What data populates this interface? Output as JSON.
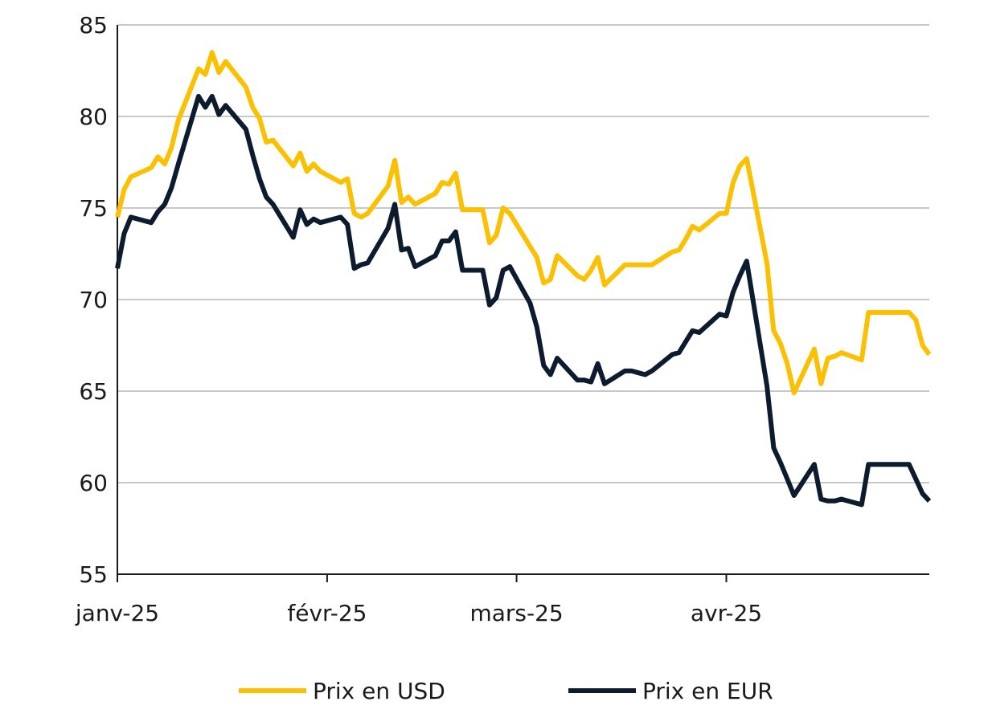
{
  "chart_data": {
    "type": "line",
    "title": "",
    "xlabel": "",
    "ylabel": "",
    "ylim": [
      55,
      85
    ],
    "y_ticks": [
      55,
      60,
      65,
      70,
      75,
      80,
      85
    ],
    "x_range": [
      "2025-01-01",
      "2025-04-30"
    ],
    "x_ticks": [
      {
        "date": "2025-01-01",
        "label": "janv-25"
      },
      {
        "date": "2025-02-01",
        "label": "févr-25"
      },
      {
        "date": "2025-03-01",
        "label": "mars-25"
      },
      {
        "date": "2025-04-01",
        "label": "avr-25"
      }
    ],
    "grid": "horizontal",
    "legend_position": "bottom",
    "series": [
      {
        "name": "Prix en USD",
        "color": "#FBC002",
        "points": [
          [
            "2025-01-01",
            74.5
          ],
          [
            "2025-01-02",
            76.0
          ],
          [
            "2025-01-03",
            76.7
          ],
          [
            "2025-01-06",
            77.2
          ],
          [
            "2025-01-07",
            77.8
          ],
          [
            "2025-01-08",
            77.4
          ],
          [
            "2025-01-09",
            78.3
          ],
          [
            "2025-01-10",
            79.8
          ],
          [
            "2025-01-13",
            82.6
          ],
          [
            "2025-01-14",
            82.3
          ],
          [
            "2025-01-15",
            83.5
          ],
          [
            "2025-01-16",
            82.4
          ],
          [
            "2025-01-17",
            83.0
          ],
          [
            "2025-01-20",
            81.6
          ],
          [
            "2025-01-21",
            80.5
          ],
          [
            "2025-01-22",
            79.9
          ],
          [
            "2025-01-23",
            78.6
          ],
          [
            "2025-01-24",
            78.7
          ],
          [
            "2025-01-27",
            77.3
          ],
          [
            "2025-01-28",
            78.0
          ],
          [
            "2025-01-29",
            77.0
          ],
          [
            "2025-01-30",
            77.4
          ],
          [
            "2025-01-31",
            77.0
          ],
          [
            "2025-02-03",
            76.4
          ],
          [
            "2025-02-04",
            76.6
          ],
          [
            "2025-02-05",
            74.7
          ],
          [
            "2025-02-06",
            74.5
          ],
          [
            "2025-02-07",
            74.7
          ],
          [
            "2025-02-10",
            76.2
          ],
          [
            "2025-02-11",
            77.6
          ],
          [
            "2025-02-12",
            75.3
          ],
          [
            "2025-02-13",
            75.6
          ],
          [
            "2025-02-14",
            75.2
          ],
          [
            "2025-02-17",
            75.8
          ],
          [
            "2025-02-18",
            76.4
          ],
          [
            "2025-02-19",
            76.3
          ],
          [
            "2025-02-20",
            76.9
          ],
          [
            "2025-02-21",
            74.9
          ],
          [
            "2025-02-24",
            74.9
          ],
          [
            "2025-02-25",
            73.1
          ],
          [
            "2025-02-26",
            73.5
          ],
          [
            "2025-02-27",
            75.0
          ],
          [
            "2025-02-28",
            74.7
          ],
          [
            "2025-03-03",
            72.9
          ],
          [
            "2025-03-04",
            72.3
          ],
          [
            "2025-03-05",
            70.9
          ],
          [
            "2025-03-06",
            71.1
          ],
          [
            "2025-03-07",
            72.4
          ],
          [
            "2025-03-10",
            71.3
          ],
          [
            "2025-03-11",
            71.1
          ],
          [
            "2025-03-12",
            71.6
          ],
          [
            "2025-03-13",
            72.3
          ],
          [
            "2025-03-14",
            70.8
          ],
          [
            "2025-03-17",
            71.9
          ],
          [
            "2025-03-18",
            71.9
          ],
          [
            "2025-03-19",
            71.9
          ],
          [
            "2025-03-20",
            71.9
          ],
          [
            "2025-03-21",
            71.9
          ],
          [
            "2025-03-24",
            72.6
          ],
          [
            "2025-03-25",
            72.7
          ],
          [
            "2025-03-26",
            73.3
          ],
          [
            "2025-03-27",
            74.0
          ],
          [
            "2025-03-28",
            73.8
          ],
          [
            "2025-03-31",
            74.7
          ],
          [
            "2025-04-01",
            74.7
          ],
          [
            "2025-04-02",
            76.4
          ],
          [
            "2025-04-03",
            77.3
          ],
          [
            "2025-04-04",
            77.7
          ],
          [
            "2025-04-07",
            72.0
          ],
          [
            "2025-04-08",
            68.3
          ],
          [
            "2025-04-09",
            67.6
          ],
          [
            "2025-04-10",
            66.5
          ],
          [
            "2025-04-11",
            64.9
          ],
          [
            "2025-04-14",
            67.3
          ],
          [
            "2025-04-15",
            65.4
          ],
          [
            "2025-04-16",
            66.8
          ],
          [
            "2025-04-17",
            66.9
          ],
          [
            "2025-04-18",
            67.1
          ],
          [
            "2025-04-21",
            66.7
          ],
          [
            "2025-04-22",
            69.3
          ],
          [
            "2025-04-23",
            69.3
          ],
          [
            "2025-04-24",
            69.3
          ],
          [
            "2025-04-25",
            69.3
          ],
          [
            "2025-04-28",
            69.3
          ],
          [
            "2025-04-29",
            68.9
          ],
          [
            "2025-04-30",
            67.5
          ],
          [
            "2025-05-01",
            67.0
          ]
        ]
      },
      {
        "name": "Prix en EUR",
        "color": "#0D1B2E",
        "points": [
          [
            "2025-01-01",
            71.7
          ],
          [
            "2025-01-02",
            73.6
          ],
          [
            "2025-01-03",
            74.5
          ],
          [
            "2025-01-06",
            74.2
          ],
          [
            "2025-01-07",
            74.8
          ],
          [
            "2025-01-08",
            75.2
          ],
          [
            "2025-01-09",
            76.1
          ],
          [
            "2025-01-10",
            77.4
          ],
          [
            "2025-01-13",
            81.1
          ],
          [
            "2025-01-14",
            80.5
          ],
          [
            "2025-01-15",
            81.1
          ],
          [
            "2025-01-16",
            80.1
          ],
          [
            "2025-01-17",
            80.6
          ],
          [
            "2025-01-20",
            79.3
          ],
          [
            "2025-01-21",
            77.9
          ],
          [
            "2025-01-22",
            76.6
          ],
          [
            "2025-01-23",
            75.6
          ],
          [
            "2025-01-24",
            75.2
          ],
          [
            "2025-01-27",
            73.4
          ],
          [
            "2025-01-28",
            74.9
          ],
          [
            "2025-01-29",
            74.1
          ],
          [
            "2025-01-30",
            74.4
          ],
          [
            "2025-01-31",
            74.2
          ],
          [
            "2025-02-03",
            74.5
          ],
          [
            "2025-02-04",
            74.1
          ],
          [
            "2025-02-05",
            71.7
          ],
          [
            "2025-02-06",
            71.9
          ],
          [
            "2025-02-07",
            72.0
          ],
          [
            "2025-02-10",
            73.9
          ],
          [
            "2025-02-11",
            75.2
          ],
          [
            "2025-02-12",
            72.7
          ],
          [
            "2025-02-13",
            72.8
          ],
          [
            "2025-02-14",
            71.8
          ],
          [
            "2025-02-17",
            72.4
          ],
          [
            "2025-02-18",
            73.2
          ],
          [
            "2025-02-19",
            73.2
          ],
          [
            "2025-02-20",
            73.7
          ],
          [
            "2025-02-21",
            71.6
          ],
          [
            "2025-02-24",
            71.6
          ],
          [
            "2025-02-25",
            69.7
          ],
          [
            "2025-02-26",
            70.1
          ],
          [
            "2025-02-27",
            71.6
          ],
          [
            "2025-02-28",
            71.8
          ],
          [
            "2025-03-03",
            69.8
          ],
          [
            "2025-03-04",
            68.5
          ],
          [
            "2025-03-05",
            66.4
          ],
          [
            "2025-03-06",
            65.9
          ],
          [
            "2025-03-07",
            66.8
          ],
          [
            "2025-03-10",
            65.6
          ],
          [
            "2025-03-11",
            65.6
          ],
          [
            "2025-03-12",
            65.5
          ],
          [
            "2025-03-13",
            66.5
          ],
          [
            "2025-03-14",
            65.4
          ],
          [
            "2025-03-17",
            66.1
          ],
          [
            "2025-03-18",
            66.1
          ],
          [
            "2025-03-19",
            66.0
          ],
          [
            "2025-03-20",
            65.9
          ],
          [
            "2025-03-21",
            66.1
          ],
          [
            "2025-03-24",
            67.0
          ],
          [
            "2025-03-25",
            67.1
          ],
          [
            "2025-03-26",
            67.7
          ],
          [
            "2025-03-27",
            68.3
          ],
          [
            "2025-03-28",
            68.2
          ],
          [
            "2025-03-31",
            69.2
          ],
          [
            "2025-04-01",
            69.1
          ],
          [
            "2025-04-02",
            70.4
          ],
          [
            "2025-04-03",
            71.3
          ],
          [
            "2025-04-04",
            72.1
          ],
          [
            "2025-04-07",
            65.3
          ],
          [
            "2025-04-08",
            61.9
          ],
          [
            "2025-04-09",
            61.1
          ],
          [
            "2025-04-10",
            60.2
          ],
          [
            "2025-04-11",
            59.3
          ],
          [
            "2025-04-14",
            61.0
          ],
          [
            "2025-04-15",
            59.1
          ],
          [
            "2025-04-16",
            59.0
          ],
          [
            "2025-04-17",
            59.0
          ],
          [
            "2025-04-18",
            59.1
          ],
          [
            "2025-04-21",
            58.8
          ],
          [
            "2025-04-22",
            61.0
          ],
          [
            "2025-04-23",
            61.0
          ],
          [
            "2025-04-24",
            61.0
          ],
          [
            "2025-04-25",
            61.0
          ],
          [
            "2025-04-28",
            61.0
          ],
          [
            "2025-04-29",
            60.2
          ],
          [
            "2025-04-30",
            59.4
          ],
          [
            "2025-05-01",
            59.0
          ]
        ]
      }
    ]
  }
}
